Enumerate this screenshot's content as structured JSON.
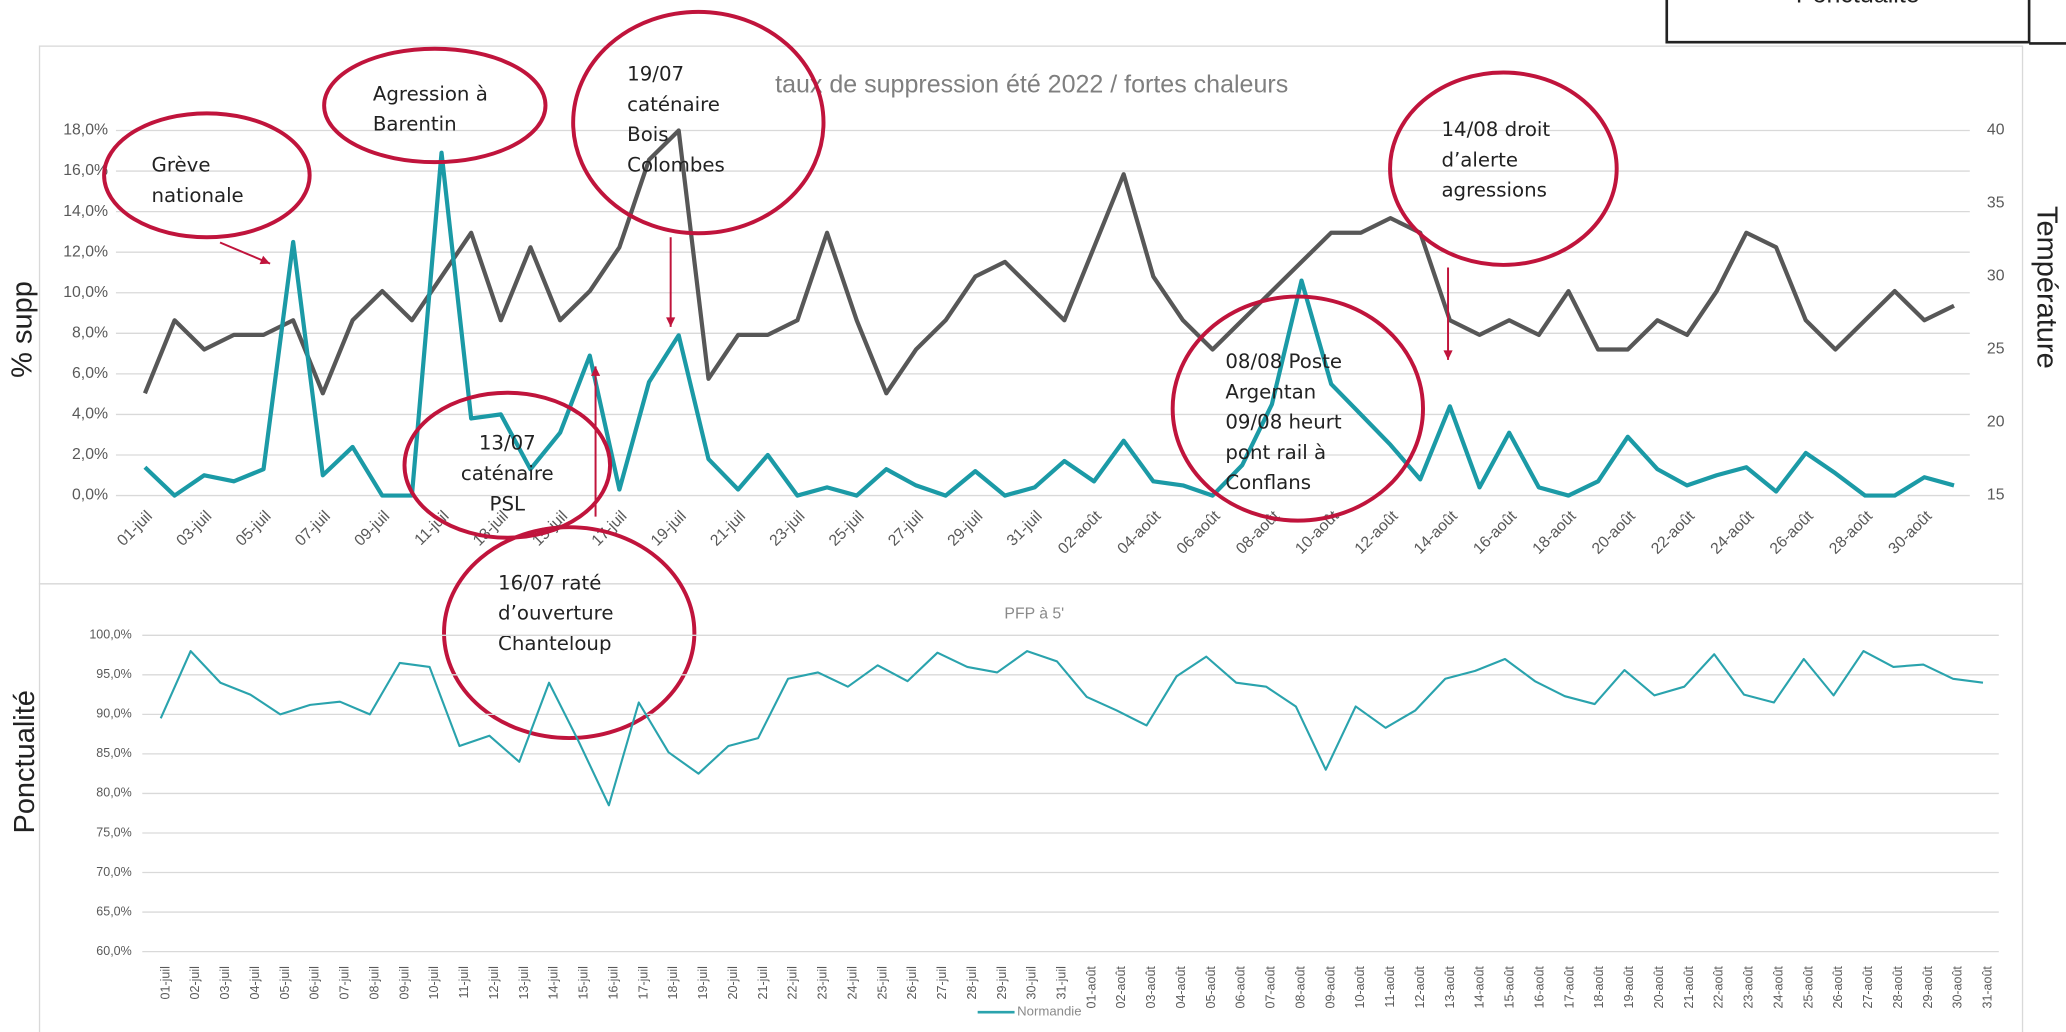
{
  "header_box": {
    "text": "Ponctualité"
  },
  "chart_data": [
    {
      "type": "line",
      "title": "taux de suppression été 2022 / fortes chaleurs",
      "ylabel": "% supp",
      "y2label": "Température",
      "categories": [
        "01-juil",
        null,
        "03-juil",
        null,
        "05-juil",
        null,
        "07-juil",
        null,
        "09-juil",
        null,
        "11-juil",
        null,
        "13-juil",
        null,
        "15-juil",
        null,
        "17-juil",
        null,
        "19-juil",
        null,
        "21-juil",
        null,
        "23-juil",
        null,
        "25-juil",
        null,
        "27-juil",
        null,
        "29-juil",
        null,
        "31-juil",
        null,
        "02-août",
        null,
        "04-août",
        null,
        "06-août",
        null,
        "08-août",
        null,
        "10-août",
        null,
        "12-août",
        null,
        "14-août",
        null,
        "16-août",
        null,
        "18-août",
        null,
        "20-août",
        null,
        "22-août",
        null,
        "24-août",
        null,
        "26-août",
        null,
        "28-août",
        null,
        "30-août",
        null
      ],
      "series": [
        {
          "color": "#1b9aa6",
          "values": [
            1.4,
            0.0,
            1.0,
            0.7,
            1.3,
            12.5,
            1.0,
            2.4,
            0.0,
            0.0,
            16.9,
            3.8,
            4.0,
            1.3,
            3.1,
            6.9,
            0.3,
            5.6,
            7.9,
            1.8,
            0.3,
            2.0,
            0.0,
            0.4,
            0.0,
            1.3,
            0.5,
            0.0,
            1.2,
            0.0,
            0.4,
            1.7,
            0.7,
            2.7,
            0.7,
            0.5,
            0.0,
            1.5,
            4.5,
            10.6,
            5.5,
            4.0,
            2.5,
            0.8,
            4.4,
            0.4,
            3.1,
            0.4,
            0.0,
            0.7,
            2.9,
            1.3,
            0.5,
            1.0,
            1.4,
            0.2,
            2.1,
            1.1,
            0.0,
            0.0,
            0.9,
            0.5
          ]
        },
        {
          "color": "#575757",
          "axis": "y2",
          "values": [
            22,
            27,
            25,
            26,
            26,
            27,
            22,
            27,
            29,
            27,
            30,
            33,
            27,
            32,
            27,
            29,
            32,
            38,
            40,
            23,
            26,
            26,
            27,
            33,
            27,
            22,
            25,
            27,
            30,
            31,
            29,
            27,
            32,
            37,
            30,
            27,
            25,
            27,
            29,
            31,
            33,
            33,
            34,
            33,
            27,
            26,
            27,
            26,
            29,
            25,
            25,
            27,
            26,
            29,
            33,
            32,
            27,
            25,
            27,
            29,
            27,
            28
          ]
        }
      ],
      "ylim": [
        0,
        18
      ],
      "yticks": [
        {
          "value": 0,
          "label": "0,0%"
        },
        {
          "value": 2,
          "label": "2,0%"
        },
        {
          "value": 4,
          "label": "4,0%"
        },
        {
          "value": 6,
          "label": "6,0%"
        },
        {
          "value": 8,
          "label": "8,0%"
        },
        {
          "value": 10,
          "label": "10,0%"
        },
        {
          "value": 12,
          "label": "12,0%"
        },
        {
          "value": 14,
          "label": "14,0%"
        },
        {
          "value": 16,
          "label": "16,0%"
        },
        {
          "value": 18,
          "label": "18,0%"
        }
      ],
      "y2lim": [
        15,
        40
      ],
      "y2ticks": [
        15,
        20,
        25,
        30,
        35,
        40
      ],
      "grid": true,
      "annotations": [
        {
          "lines": [
            "Grève",
            "nationale"
          ]
        },
        {
          "lines": [
            "Agression à",
            "Barentin"
          ]
        },
        {
          "lines": [
            "19/07",
            "caténaire",
            "Bois",
            "Colombes"
          ]
        },
        {
          "lines": [
            "13/07",
            "caténaire",
            "PSL"
          ]
        },
        {
          "lines": [
            "16/07 raté",
            "d’ouverture",
            "Chanteloup"
          ]
        },
        {
          "lines": [
            "08/08 Poste",
            "Argentan",
            "09/08 heurt",
            "pont rail à",
            "Conflans"
          ]
        },
        {
          "lines": [
            "14/08 droit",
            "d’alerte",
            "agressions"
          ]
        }
      ]
    },
    {
      "type": "line",
      "title": "PFP à 5'",
      "ylabel": "Ponctualité",
      "categories": [
        "01-juil",
        "02-juil",
        "03-juil",
        "04-juil",
        "05-juil",
        "06-juil",
        "07-juil",
        "08-juil",
        "09-juil",
        "10-juil",
        "11-juil",
        "12-juil",
        "13-juil",
        "14-juil",
        "15-juil",
        "16-juil",
        "17-juil",
        "18-juil",
        "19-juil",
        "20-juil",
        "21-juil",
        "22-juil",
        "23-juil",
        "24-juil",
        "25-juil",
        "26-juil",
        "27-juil",
        "28-juil",
        "29-juil",
        "30-juil",
        "31-juil",
        "01-août",
        "02-août",
        "03-août",
        "04-août",
        "05-août",
        "06-août",
        "07-août",
        "08-août",
        "09-août",
        "10-août",
        "11-août",
        "12-août",
        "13-août",
        "14-août",
        "15-août",
        "16-août",
        "17-août",
        "18-août",
        "19-août",
        "20-août",
        "21-août",
        "22-août",
        "23-août",
        "24-août",
        "25-août",
        "26-août",
        "27-août",
        "28-août",
        "29-août",
        "30-août",
        "31-août"
      ],
      "series": [
        {
          "name": "Normandie",
          "color": "#2aa3ad",
          "values": [
            89.5,
            98,
            94,
            92.5,
            90,
            91.2,
            91.6,
            90,
            96.5,
            96,
            86,
            87.3,
            84,
            94,
            86.5,
            78.5,
            91.5,
            85.2,
            82.5,
            86,
            87,
            94.5,
            95.3,
            93.5,
            96.2,
            94.2,
            97.8,
            96,
            95.3,
            98,
            96.7,
            92.2,
            90.5,
            88.6,
            94.8,
            97.3,
            94,
            93.5,
            91,
            83,
            91,
            88.3,
            90.5,
            94.5,
            95.5,
            97,
            94.2,
            92.3,
            91.3,
            95.6,
            92.4,
            93.5,
            97.6,
            92.5,
            91.5,
            97,
            92.4,
            98,
            96,
            96.3,
            94.5,
            94
          ]
        }
      ],
      "ylim": [
        60,
        100
      ],
      "yticks": [
        {
          "value": 60,
          "label": "60,0%"
        },
        {
          "value": 65,
          "label": "65,0%"
        },
        {
          "value": 70,
          "label": "70,0%"
        },
        {
          "value": 75,
          "label": "75,0%"
        },
        {
          "value": 80,
          "label": "80,0%"
        },
        {
          "value": 85,
          "label": "85,0%"
        },
        {
          "value": 90,
          "label": "90,0%"
        },
        {
          "value": 95,
          "label": "95,0%"
        },
        {
          "value": {
            "value": 100,
            "label": "100,0%"
          },
          "label": "100,0%"
        }
      ],
      "grid": true,
      "legend": "bottom"
    }
  ]
}
